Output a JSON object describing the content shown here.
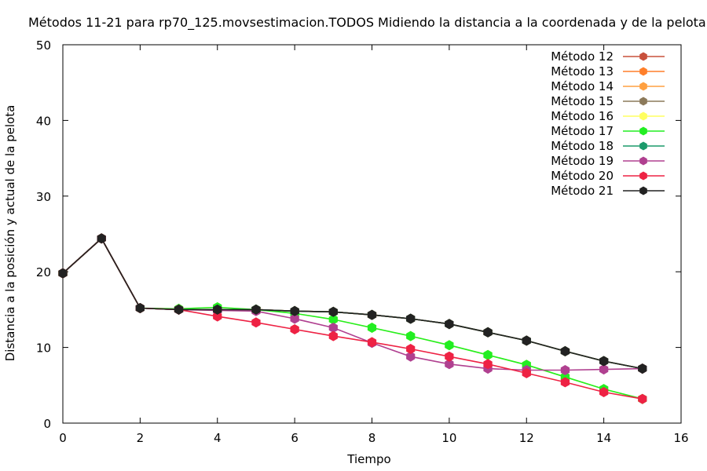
{
  "chart_data": {
    "type": "line",
    "title": "Métodos 11-21 para rp70_125.movsestimacion.TODOS Midiendo la distancia a la coordenada y de la pelota",
    "xlabel": "Tiempo",
    "ylabel": "Distancia a la posición y actual de la pelota",
    "xlim": [
      0,
      16
    ],
    "ylim": [
      0,
      50
    ],
    "xticks": [
      0,
      2,
      4,
      6,
      8,
      10,
      12,
      14,
      16
    ],
    "yticks": [
      0,
      10,
      20,
      30,
      40,
      50
    ],
    "grid": false,
    "legend_position": "top-right",
    "x": [
      0,
      1,
      2,
      3,
      4,
      5,
      6,
      7,
      8,
      9,
      10,
      11,
      12,
      13,
      14,
      15
    ],
    "series": [
      {
        "name": "Método 12",
        "color": "#c8503c",
        "values": [
          19.8,
          24.4,
          15.2,
          15.0,
          15.0,
          15.0,
          14.8,
          14.7,
          14.3,
          13.8,
          13.1,
          12.0,
          10.9,
          9.5,
          8.2,
          7.2
        ]
      },
      {
        "name": "Método 13",
        "color": "#ff7f2a",
        "values": [
          19.8,
          24.4,
          15.2,
          15.0,
          15.0,
          15.0,
          14.8,
          14.7,
          14.3,
          13.8,
          13.1,
          12.0,
          10.9,
          9.5,
          8.2,
          7.2
        ]
      },
      {
        "name": "Método 14",
        "color": "#ffa040",
        "values": [
          19.8,
          24.4,
          15.2,
          15.0,
          15.0,
          15.0,
          14.8,
          14.7,
          14.3,
          13.8,
          13.1,
          12.0,
          10.9,
          9.5,
          8.2,
          7.2
        ]
      },
      {
        "name": "Método 15",
        "color": "#8c7a5a",
        "values": [
          19.8,
          24.4,
          15.2,
          15.0,
          15.0,
          15.0,
          14.8,
          14.7,
          14.3,
          13.8,
          13.1,
          12.0,
          10.9,
          9.5,
          8.2,
          7.2
        ]
      },
      {
        "name": "Método 16",
        "color": "#ffff60",
        "values": [
          19.8,
          24.4,
          15.2,
          15.1,
          15.3,
          15.0,
          14.5,
          13.7,
          12.6,
          11.5,
          10.3,
          9.0,
          7.7,
          6.1,
          4.5,
          3.2
        ]
      },
      {
        "name": "Método 17",
        "color": "#22ee22",
        "values": [
          19.8,
          24.4,
          15.2,
          15.1,
          15.3,
          15.0,
          14.5,
          13.7,
          12.6,
          11.5,
          10.3,
          9.0,
          7.7,
          6.1,
          4.5,
          3.2
        ]
      },
      {
        "name": "Método 18",
        "color": "#1a9a6a",
        "values": [
          19.8,
          24.4,
          15.2,
          15.0,
          15.0,
          15.0,
          14.8,
          14.7,
          14.3,
          13.8,
          13.1,
          12.0,
          10.9,
          9.5,
          8.2,
          7.2
        ]
      },
      {
        "name": "Método 19",
        "color": "#b04090",
        "values": [
          19.8,
          24.4,
          15.2,
          15.0,
          14.9,
          14.8,
          13.8,
          12.6,
          10.6,
          8.8,
          7.8,
          7.2,
          7.0,
          7.0,
          7.1,
          7.2
        ]
      },
      {
        "name": "Método 20",
        "color": "#ee2244",
        "values": [
          19.8,
          24.4,
          15.2,
          15.0,
          14.1,
          13.3,
          12.4,
          11.5,
          10.7,
          9.8,
          8.8,
          7.8,
          6.6,
          5.4,
          4.1,
          3.2
        ]
      },
      {
        "name": "Método 21",
        "color": "#222222",
        "values": [
          19.8,
          24.4,
          15.2,
          15.0,
          15.0,
          15.0,
          14.8,
          14.7,
          14.3,
          13.8,
          13.1,
          12.0,
          10.9,
          9.5,
          8.2,
          7.2
        ]
      }
    ]
  }
}
